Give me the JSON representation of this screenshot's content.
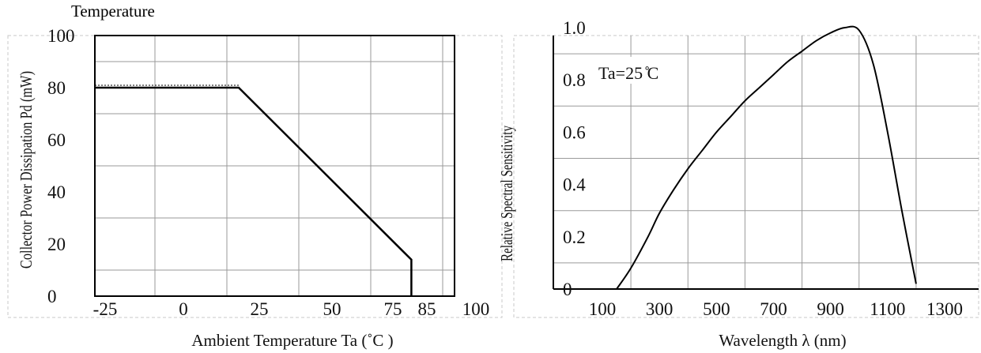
{
  "header": {
    "caption": "Temperature"
  },
  "chart_data": [
    {
      "type": "line",
      "title": "",
      "xlabel": "Ambient Temperature Ta (˚C )",
      "ylabel": "Collector Power Dissipation Pd (mW)",
      "x_ticks": [
        "-25",
        "0",
        "25",
        "50",
        "75",
        "85",
        "100"
      ],
      "y_ticks": [
        "0",
        "20",
        "40",
        "60",
        "80",
        "100"
      ],
      "xlim": [
        -25,
        100
      ],
      "ylim": [
        0,
        100
      ],
      "grid": true,
      "series": [
        {
          "x": [
            -25,
            25,
            85,
            85
          ],
          "y": [
            80,
            80,
            14,
            0
          ]
        }
      ]
    },
    {
      "type": "line",
      "title": "",
      "xlabel": "Wavelength λ (nm)",
      "ylabel": "Relative Spectral Sensitivity",
      "annotation": "Ta=25 ̊C",
      "x_ticks": [
        "100",
        "300",
        "500",
        "700",
        "900",
        "1100",
        "1300"
      ],
      "y_ticks": [
        "0",
        "0.2",
        "0.4",
        "0.6",
        "0.8",
        "1.0"
      ],
      "xlim": [
        0,
        1300
      ],
      "ylim": [
        0,
        1.0
      ],
      "grid": true,
      "series": [
        {
          "x": [
            150,
            200,
            260,
            300,
            350,
            400,
            450,
            500,
            550,
            600,
            650,
            700,
            750,
            800,
            850,
            900,
            950,
            1000,
            1050,
            1100,
            1150,
            1200
          ],
          "y": [
            0.0,
            0.08,
            0.2,
            0.29,
            0.38,
            0.46,
            0.53,
            0.6,
            0.66,
            0.72,
            0.77,
            0.82,
            0.87,
            0.91,
            0.95,
            0.98,
            1.0,
            0.99,
            0.86,
            0.6,
            0.3,
            0.02
          ]
        }
      ]
    }
  ]
}
